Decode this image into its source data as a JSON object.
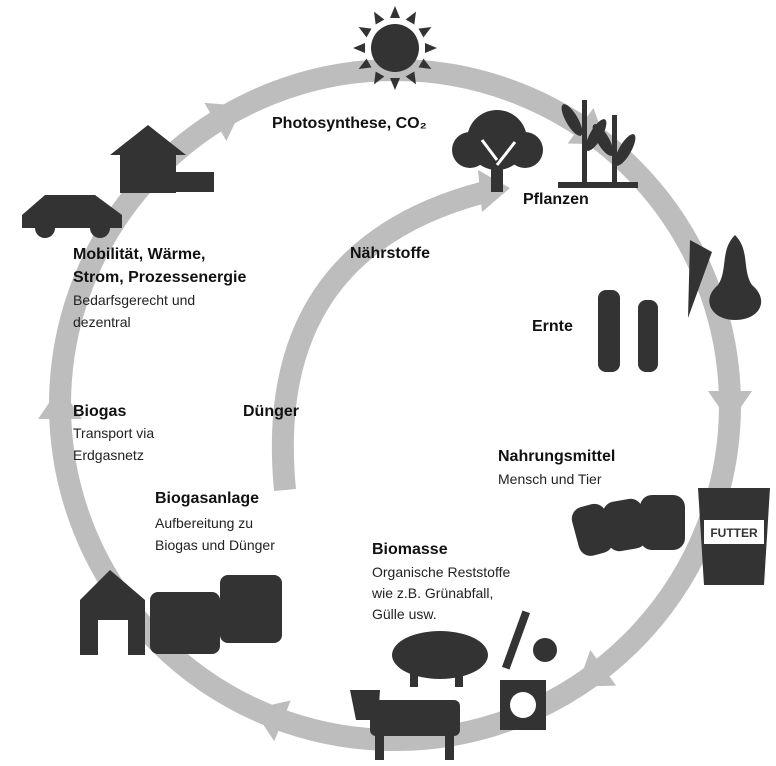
{
  "nodes": [
    {
      "title": "Photosynthese, CO₂"
    },
    {
      "title": "Pflanzen"
    },
    {
      "title": "Ernte"
    },
    {
      "title": "Nahrungsmittel",
      "lines": [
        "Mensch und Tier"
      ]
    },
    {
      "title": "Biomasse",
      "lines": [
        "Organische Reststoffe",
        "wie z.B. Grünabfall,",
        "Gülle usw."
      ]
    },
    {
      "title": "Biogasanlage",
      "lines": [
        "Aufbereitung zu",
        "Biogas und Dünger"
      ]
    },
    {
      "title": "Biogas",
      "lines": [
        "Transport via",
        "Erdgasnetz"
      ]
    },
    {
      "title_lines": [
        "Mobilität, Wärme,",
        "Strom, Prozessenergie"
      ],
      "lines": [
        "Bedarfsgerecht und",
        "dezentral"
      ]
    }
  ],
  "inner_cycle": [
    "Nährstoffe",
    "Dünger"
  ],
  "icons": {
    "bag_label": "FUTTER"
  }
}
